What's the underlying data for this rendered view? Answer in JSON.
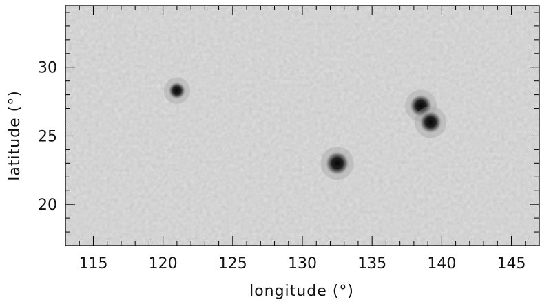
{
  "chart_data": {
    "type": "scatter",
    "title": "",
    "xlabel": "longitude (°)",
    "ylabel": "latitude (°)",
    "xlim": [
      113,
      147
    ],
    "ylim": [
      17,
      34.5
    ],
    "xticks": [
      115,
      120,
      125,
      130,
      135,
      140,
      145
    ],
    "xtick_labels": [
      "115",
      "120",
      "125",
      "130",
      "135",
      "140",
      "145"
    ],
    "yticks": [
      20,
      25,
      30
    ],
    "ytick_labels": [
      "20",
      "25",
      "30"
    ],
    "grid": false,
    "legend": "none",
    "background": "grayscale intensity map (solar photosphere)",
    "series": [
      {
        "values": [
          {
            "x": 121.0,
            "y": 28.3
          },
          {
            "x": 132.5,
            "y": 23.0
          },
          {
            "x": 138.5,
            "y": 27.2
          },
          {
            "x": 139.2,
            "y": 26.0
          }
        ]
      }
    ],
    "colors": {
      "background": "#c9c9c9",
      "spot_core": "#0a0a0a",
      "axes": "#000000"
    }
  }
}
